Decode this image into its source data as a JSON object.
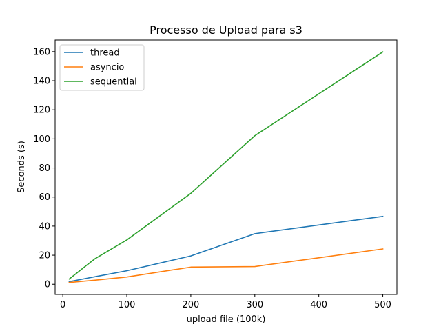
{
  "chart_data": {
    "type": "line",
    "title": "Processo de Upload para s3",
    "xlabel": "upload file (100k)",
    "ylabel": "Seconds (s)",
    "xlim": [
      -12,
      522
    ],
    "ylim": [
      -7,
      168
    ],
    "xticks": [
      0,
      100,
      200,
      300,
      400,
      500
    ],
    "yticks": [
      0,
      20,
      40,
      60,
      80,
      100,
      120,
      140,
      160
    ],
    "grid": false,
    "legend_position": "top-left",
    "x": [
      10,
      50,
      100,
      200,
      300,
      500
    ],
    "series": [
      {
        "name": "thread",
        "color": "#1f77b4",
        "values": [
          1.8,
          5.2,
          9.3,
          19.5,
          34.8,
          46.7
        ]
      },
      {
        "name": "asyncio",
        "color": "#ff7f0e",
        "values": [
          1.2,
          2.8,
          5.0,
          11.8,
          12.2,
          24.3
        ]
      },
      {
        "name": "sequential",
        "color": "#2ca02c",
        "values": [
          3.6,
          17.5,
          30.5,
          62.5,
          102.2,
          159.8
        ]
      }
    ]
  }
}
